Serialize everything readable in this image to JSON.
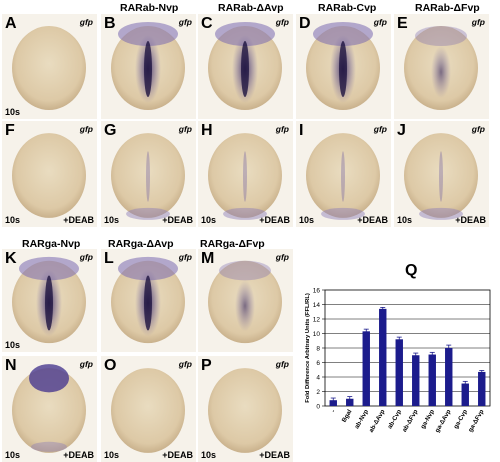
{
  "row_headers_top": [
    "RARab-Nvp",
    "RARab-ΔAvp",
    "RARab-Cvp",
    "RARab-ΔFvp"
  ],
  "row_headers_mid": [
    "RARga-Nvp",
    "RARga-ΔAvp",
    "RARga-ΔFvp"
  ],
  "panels": [
    {
      "letter": "A",
      "gene": "gfp",
      "stage": "10s",
      "treatment": "",
      "stain": "none"
    },
    {
      "letter": "B",
      "gene": "gfp",
      "stage": "",
      "treatment": "",
      "stain": "strong"
    },
    {
      "letter": "C",
      "gene": "gfp",
      "stage": "",
      "treatment": "",
      "stain": "strong"
    },
    {
      "letter": "D",
      "gene": "gfp",
      "stage": "",
      "treatment": "",
      "stain": "strong"
    },
    {
      "letter": "E",
      "gene": "gfp",
      "stage": "",
      "treatment": "",
      "stain": "medium"
    },
    {
      "letter": "F",
      "gene": "gfp",
      "stage": "10s",
      "treatment": "+DEAB",
      "stain": "none"
    },
    {
      "letter": "G",
      "gene": "gfp",
      "stage": "10s",
      "treatment": "+DEAB",
      "stain": "faint"
    },
    {
      "letter": "H",
      "gene": "gfp",
      "stage": "10s",
      "treatment": "+DEAB",
      "stain": "faint"
    },
    {
      "letter": "I",
      "gene": "gfp",
      "stage": "10s",
      "treatment": "+DEAB",
      "stain": "faint"
    },
    {
      "letter": "J",
      "gene": "gfp",
      "stage": "10s",
      "treatment": "+DEAB",
      "stain": "faint"
    },
    {
      "letter": "K",
      "gene": "gfp",
      "stage": "10s",
      "treatment": "",
      "stain": "strong"
    },
    {
      "letter": "L",
      "gene": "gfp",
      "stage": "",
      "treatment": "",
      "stain": "strong"
    },
    {
      "letter": "M",
      "gene": "gfp",
      "stage": "",
      "treatment": "",
      "stain": "medium"
    },
    {
      "letter": "N",
      "gene": "gfp",
      "stage": "10s",
      "treatment": "+DEAB",
      "stain": "head"
    },
    {
      "letter": "O",
      "gene": "gfp",
      "stage": "10s",
      "treatment": "+DEAB",
      "stain": "none"
    },
    {
      "letter": "P",
      "gene": "gfp",
      "stage": "10s",
      "treatment": "+DEAB",
      "stain": "none"
    }
  ],
  "chart_label": "Q",
  "chart_data": {
    "type": "bar",
    "title": "",
    "xlabel": "",
    "ylabel": "Fold Difference Arbitrary Units (FFL/RL)",
    "categories": [
      "-",
      "Bgal",
      "ab-Nvp",
      "ab-ΔAvp",
      "ab-Cvp",
      "ab-ΔFvp",
      "ga-Nvp",
      "ga-ΔAvp",
      "ga-Cvp",
      "ga-ΔFvp"
    ],
    "values": [
      0.8,
      1.0,
      10.3,
      13.4,
      9.2,
      7.0,
      7.1,
      8.0,
      3.1,
      4.7
    ],
    "errors": [
      0.3,
      0.3,
      0.3,
      0.2,
      0.3,
      0.3,
      0.3,
      0.4,
      0.3,
      0.2
    ],
    "ylim": [
      0,
      16
    ],
    "yticks": [
      0,
      2,
      4,
      6,
      8,
      10,
      12,
      14,
      16
    ],
    "grid": true,
    "bar_color": "#1c1c8c"
  }
}
